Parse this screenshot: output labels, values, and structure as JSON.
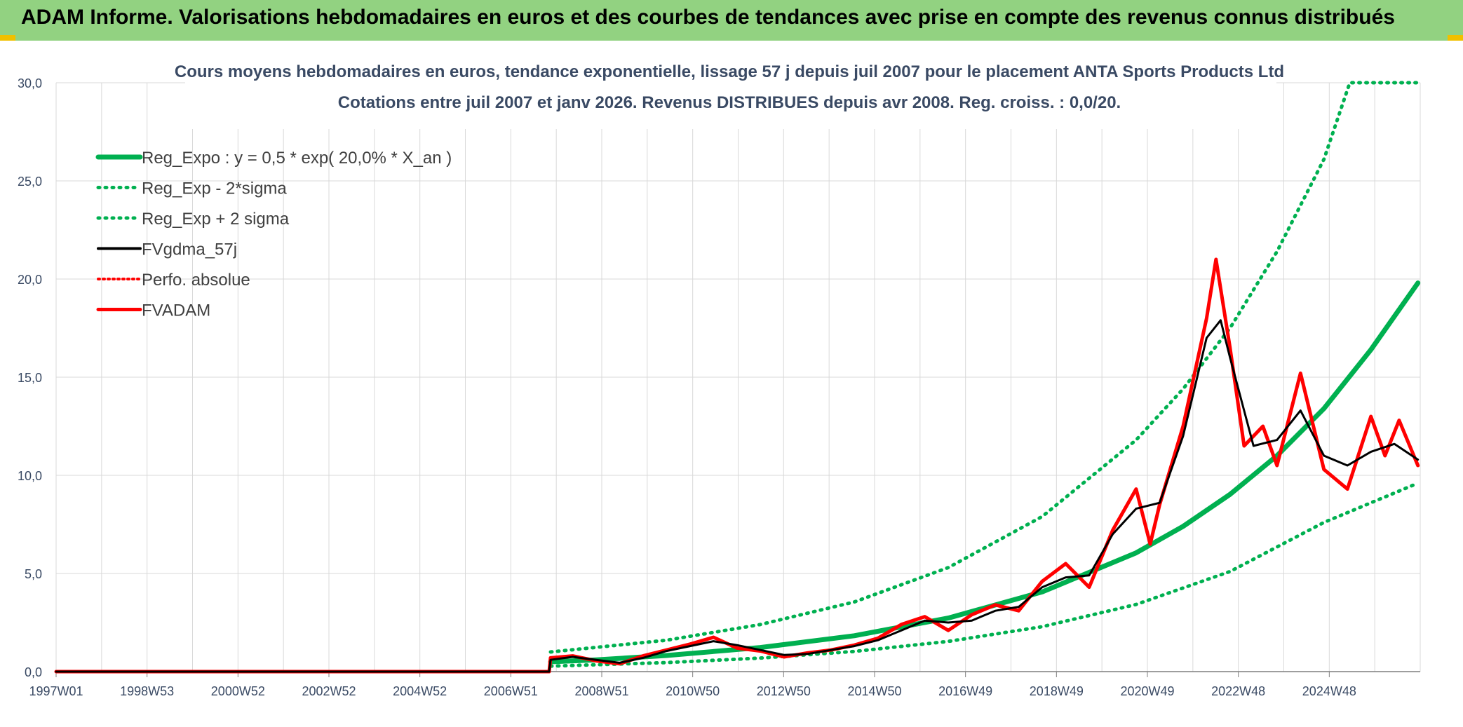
{
  "banner": {
    "title": "ADAM Informe. Valorisations hebdomadaires en euros et des courbes de tendances avec prise en compte des revenus connus distribués"
  },
  "colors": {
    "banner_bg": "#92d281",
    "corner_accent": "#f0c000",
    "trend_green": "#00b050",
    "fvgdma_black": "#000000",
    "fvadam_red": "#ff0000",
    "grid": "#d9d9d9",
    "text_dark": "#3a4a64"
  },
  "chart_data": {
    "type": "line",
    "title": "Cours moyens hebdomadaires en euros, tendance exponentielle, lissage 57 j depuis juil 2007 pour le placement ANTA Sports Products Ltd",
    "subtitle": "Cotations entre juil 2007 et janv 2026. Revenus DISTRIBUES depuis avr 2008. Reg. croiss. : 0,0/20.",
    "x_tick_labels": [
      "1997W01",
      "1998W53",
      "2000W52",
      "2002W52",
      "2004W52",
      "2006W51",
      "2008W51",
      "2010W50",
      "2012W50",
      "2014W50",
      "2016W49",
      "2018W49",
      "2020W49",
      "2022W48",
      "2024W48"
    ],
    "x_range": [
      1997.0,
      2026.05
    ],
    "ylim": [
      0,
      30
    ],
    "y_ticks": [
      "0,0",
      "5,0",
      "10,0",
      "15,0",
      "20,0",
      "25,0",
      "30,0"
    ],
    "grid": true,
    "legend_position": "top-left",
    "series": [
      {
        "name": "Reg_Expo : y = 0,5 * exp( 20,0% *  X_an )",
        "style": "solid-green-thick",
        "points": [
          [
            2007.53,
            0.5
          ],
          [
            2008.5,
            0.6
          ],
          [
            2010,
            0.82
          ],
          [
            2012,
            1.23
          ],
          [
            2014,
            1.83
          ],
          [
            2016,
            2.73
          ],
          [
            2018,
            4.06
          ],
          [
            2020,
            6.05
          ],
          [
            2021,
            7.4
          ],
          [
            2022,
            9.03
          ],
          [
            2023,
            11.0
          ],
          [
            2024,
            13.4
          ],
          [
            2025,
            16.4
          ],
          [
            2026,
            19.8
          ]
        ]
      },
      {
        "name": "Reg_Exp - 2*sigma",
        "style": "dotted-green",
        "points": [
          [
            2007.53,
            0.28
          ],
          [
            2010,
            0.46
          ],
          [
            2012,
            0.69
          ],
          [
            2014,
            1.03
          ],
          [
            2016,
            1.54
          ],
          [
            2018,
            2.29
          ],
          [
            2020,
            3.42
          ],
          [
            2022,
            5.1
          ],
          [
            2024,
            7.6
          ],
          [
            2026,
            9.6
          ]
        ]
      },
      {
        "name": "Reg_Exp + 2 sigma",
        "style": "dotted-green",
        "points": [
          [
            2007.53,
            1.0
          ],
          [
            2010,
            1.6
          ],
          [
            2012,
            2.4
          ],
          [
            2014,
            3.55
          ],
          [
            2016,
            5.3
          ],
          [
            2018,
            7.9
          ],
          [
            2020,
            11.8
          ],
          [
            2021,
            14.4
          ],
          [
            2022,
            17.5
          ],
          [
            2023,
            21.4
          ],
          [
            2024,
            26.1
          ],
          [
            2024.55,
            30.0
          ],
          [
            2026,
            30.0
          ]
        ]
      },
      {
        "name": "FVgdma_57j",
        "style": "solid-black",
        "points": [
          [
            1997,
            0
          ],
          [
            2007.5,
            0
          ],
          [
            2007.53,
            0.6
          ],
          [
            2008,
            0.75
          ],
          [
            2008.5,
            0.6
          ],
          [
            2009,
            0.45
          ],
          [
            2009.5,
            0.7
          ],
          [
            2010,
            1.05
          ],
          [
            2010.5,
            1.3
          ],
          [
            2011,
            1.55
          ],
          [
            2011.5,
            1.35
          ],
          [
            2012,
            1.1
          ],
          [
            2012.5,
            0.85
          ],
          [
            2013,
            0.9
          ],
          [
            2013.5,
            1.1
          ],
          [
            2014,
            1.3
          ],
          [
            2014.5,
            1.6
          ],
          [
            2015,
            2.1
          ],
          [
            2015.5,
            2.6
          ],
          [
            2016,
            2.5
          ],
          [
            2016.5,
            2.6
          ],
          [
            2017,
            3.1
          ],
          [
            2017.5,
            3.3
          ],
          [
            2018,
            4.3
          ],
          [
            2018.5,
            4.8
          ],
          [
            2019,
            4.9
          ],
          [
            2019.5,
            7.0
          ],
          [
            2020,
            8.3
          ],
          [
            2020.5,
            8.6
          ],
          [
            2021,
            12.0
          ],
          [
            2021.5,
            17.0
          ],
          [
            2021.8,
            17.9
          ],
          [
            2022,
            16.0
          ],
          [
            2022.5,
            11.5
          ],
          [
            2023,
            11.8
          ],
          [
            2023.5,
            13.3
          ],
          [
            2024,
            11.0
          ],
          [
            2024.5,
            10.5
          ],
          [
            2025,
            11.2
          ],
          [
            2025.5,
            11.6
          ],
          [
            2026,
            10.8
          ]
        ]
      },
      {
        "name": "Perfo. absolue",
        "style": "dotted-red",
        "points": [
          [
            1997,
            0
          ],
          [
            2007.5,
            0
          ],
          [
            2007.53,
            0.7
          ],
          [
            2008,
            0.8
          ],
          [
            2008.5,
            0.55
          ],
          [
            2009,
            0.4
          ],
          [
            2009.5,
            0.8
          ],
          [
            2010,
            1.1
          ],
          [
            2010.5,
            1.4
          ],
          [
            2011,
            1.75
          ],
          [
            2011.5,
            1.2
          ],
          [
            2012,
            1.05
          ],
          [
            2012.5,
            0.75
          ],
          [
            2013,
            0.95
          ],
          [
            2013.5,
            1.1
          ],
          [
            2014,
            1.35
          ],
          [
            2014.5,
            1.7
          ],
          [
            2015,
            2.4
          ],
          [
            2015.5,
            2.8
          ],
          [
            2016,
            2.1
          ],
          [
            2016.5,
            2.9
          ],
          [
            2017,
            3.4
          ],
          [
            2017.5,
            3.1
          ],
          [
            2018,
            4.6
          ],
          [
            2018.5,
            5.5
          ],
          [
            2019,
            4.3
          ],
          [
            2019.5,
            7.2
          ],
          [
            2020,
            9.3
          ],
          [
            2020.3,
            6.5
          ],
          [
            2020.5,
            8.5
          ],
          [
            2021,
            12.5
          ],
          [
            2021.5,
            18.0
          ],
          [
            2021.7,
            21.0
          ],
          [
            2022,
            16.5
          ],
          [
            2022.3,
            11.5
          ],
          [
            2022.7,
            12.5
          ],
          [
            2023,
            10.5
          ],
          [
            2023.5,
            15.2
          ],
          [
            2024,
            10.3
          ],
          [
            2024.5,
            9.3
          ],
          [
            2025,
            13.0
          ],
          [
            2025.3,
            11.0
          ],
          [
            2025.6,
            12.8
          ],
          [
            2026,
            10.5
          ]
        ]
      },
      {
        "name": "FVADAM",
        "style": "solid-red-thick",
        "points": [
          [
            1997,
            0
          ],
          [
            2007.5,
            0
          ],
          [
            2007.53,
            0.7
          ],
          [
            2008,
            0.8
          ],
          [
            2008.5,
            0.55
          ],
          [
            2009,
            0.4
          ],
          [
            2009.5,
            0.8
          ],
          [
            2010,
            1.1
          ],
          [
            2010.5,
            1.4
          ],
          [
            2011,
            1.75
          ],
          [
            2011.5,
            1.2
          ],
          [
            2012,
            1.05
          ],
          [
            2012.5,
            0.75
          ],
          [
            2013,
            0.95
          ],
          [
            2013.5,
            1.1
          ],
          [
            2014,
            1.35
          ],
          [
            2014.5,
            1.7
          ],
          [
            2015,
            2.4
          ],
          [
            2015.5,
            2.8
          ],
          [
            2016,
            2.1
          ],
          [
            2016.5,
            2.9
          ],
          [
            2017,
            3.4
          ],
          [
            2017.5,
            3.1
          ],
          [
            2018,
            4.6
          ],
          [
            2018.5,
            5.5
          ],
          [
            2019,
            4.3
          ],
          [
            2019.5,
            7.2
          ],
          [
            2020,
            9.3
          ],
          [
            2020.3,
            6.5
          ],
          [
            2020.5,
            8.5
          ],
          [
            2021,
            12.5
          ],
          [
            2021.5,
            18.0
          ],
          [
            2021.7,
            21.0
          ],
          [
            2022,
            16.5
          ],
          [
            2022.3,
            11.5
          ],
          [
            2022.7,
            12.5
          ],
          [
            2023,
            10.5
          ],
          [
            2023.5,
            15.2
          ],
          [
            2024,
            10.3
          ],
          [
            2024.5,
            9.3
          ],
          [
            2025,
            13.0
          ],
          [
            2025.3,
            11.0
          ],
          [
            2025.6,
            12.8
          ],
          [
            2026,
            10.5
          ]
        ]
      }
    ]
  }
}
